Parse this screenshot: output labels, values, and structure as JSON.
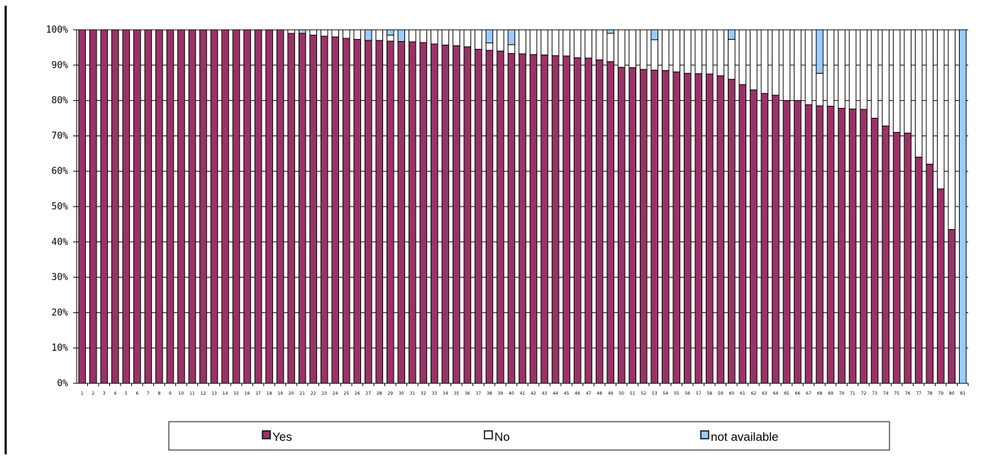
{
  "chart_data": {
    "type": "bar",
    "stacked": true,
    "percent_stacked": true,
    "categories": [
      "1",
      "2",
      "3",
      "4",
      "5",
      "6",
      "7",
      "8",
      "9",
      "10",
      "11",
      "12",
      "13",
      "14",
      "15",
      "16",
      "17",
      "18",
      "19",
      "20",
      "21",
      "22",
      "23",
      "24",
      "25",
      "26",
      "27",
      "28",
      "29",
      "30",
      "31",
      "32",
      "33",
      "34",
      "35",
      "36",
      "37",
      "38",
      "39",
      "40",
      "41",
      "42",
      "43",
      "44",
      "45",
      "46",
      "47",
      "48",
      "49",
      "50",
      "51",
      "52",
      "53",
      "54",
      "55",
      "56",
      "57",
      "58",
      "59",
      "60",
      "61",
      "62",
      "63",
      "64",
      "65",
      "66",
      "67",
      "68",
      "69",
      "70",
      "71",
      "72",
      "73",
      "74",
      "75",
      "76",
      "77",
      "78",
      "79",
      "80",
      "81"
    ],
    "series": [
      {
        "name": "Yes",
        "color": "#993366",
        "values": [
          100,
          100,
          100,
          100,
          100,
          100,
          100,
          100,
          100,
          100,
          100,
          100,
          100,
          100,
          100,
          100,
          100,
          100,
          100,
          99,
          99,
          98.5,
          98.2,
          98,
          97.6,
          97.3,
          97,
          97,
          96.8,
          96.7,
          96.6,
          96.4,
          96,
          95.7,
          95.5,
          95.2,
          94.5,
          94.2,
          94,
          93.3,
          93.2,
          93,
          92.9,
          92.7,
          92.6,
          92.1,
          92,
          91.5,
          91,
          89.4,
          89.3,
          88.8,
          88.6,
          88.5,
          88.1,
          87.7,
          87.6,
          87.5,
          87,
          86,
          84.5,
          83,
          82,
          81.5,
          80,
          80,
          78.8,
          78.5,
          78.4,
          77.8,
          77.6,
          77.5,
          75,
          72.8,
          71,
          70.8,
          64,
          62,
          55,
          43.5,
          0
        ]
      },
      {
        "name": "No",
        "color": "#ffffff",
        "values": [
          0,
          0,
          0,
          0,
          0,
          0,
          0,
          0,
          0,
          0,
          0,
          0,
          0,
          0,
          0,
          0,
          0,
          0,
          0,
          1,
          0,
          1.5,
          1.8,
          2,
          2.4,
          2.7,
          0,
          3,
          1.7,
          0,
          3.4,
          3.6,
          4,
          4.3,
          4.5,
          4.8,
          5.5,
          2.1,
          6,
          2.5,
          6.8,
          7,
          7.1,
          7.3,
          7.4,
          7.9,
          8,
          8.5,
          8,
          10.6,
          10.7,
          11.2,
          8.6,
          11.5,
          11.9,
          12.3,
          12.4,
          12.5,
          13,
          11.3,
          15.5,
          17,
          18,
          18.5,
          20,
          20,
          21.2,
          9.2,
          21.6,
          22.2,
          22.4,
          22.5,
          25,
          27.2,
          29,
          29.2,
          36,
          38,
          45,
          56.5,
          0
        ]
      },
      {
        "name": "not available",
        "color": "#99ccff",
        "values": [
          0,
          0,
          0,
          0,
          0,
          0,
          0,
          0,
          0,
          0,
          0,
          0,
          0,
          0,
          0,
          0,
          0,
          0,
          0,
          0,
          1,
          0,
          0,
          0,
          0,
          0,
          3,
          0,
          1.5,
          3.3,
          0,
          0,
          0,
          0,
          0,
          0,
          0,
          3.7,
          0,
          4.2,
          0,
          0,
          0,
          0,
          0,
          0,
          0,
          0,
          1,
          0,
          0,
          0,
          2.8,
          0,
          0,
          0,
          0,
          0,
          0,
          2.7,
          0,
          0,
          0,
          0,
          0,
          0,
          0,
          12.3,
          0,
          0,
          0,
          0,
          0,
          0,
          0,
          0,
          0,
          0,
          0,
          0,
          100
        ]
      }
    ],
    "y_ticks": [
      "0%",
      "10%",
      "20%",
      "30%",
      "40%",
      "50%",
      "60%",
      "70%",
      "80%",
      "90%",
      "100%"
    ],
    "ylim": [
      0,
      100
    ],
    "grid": true,
    "legend": "bottom"
  }
}
